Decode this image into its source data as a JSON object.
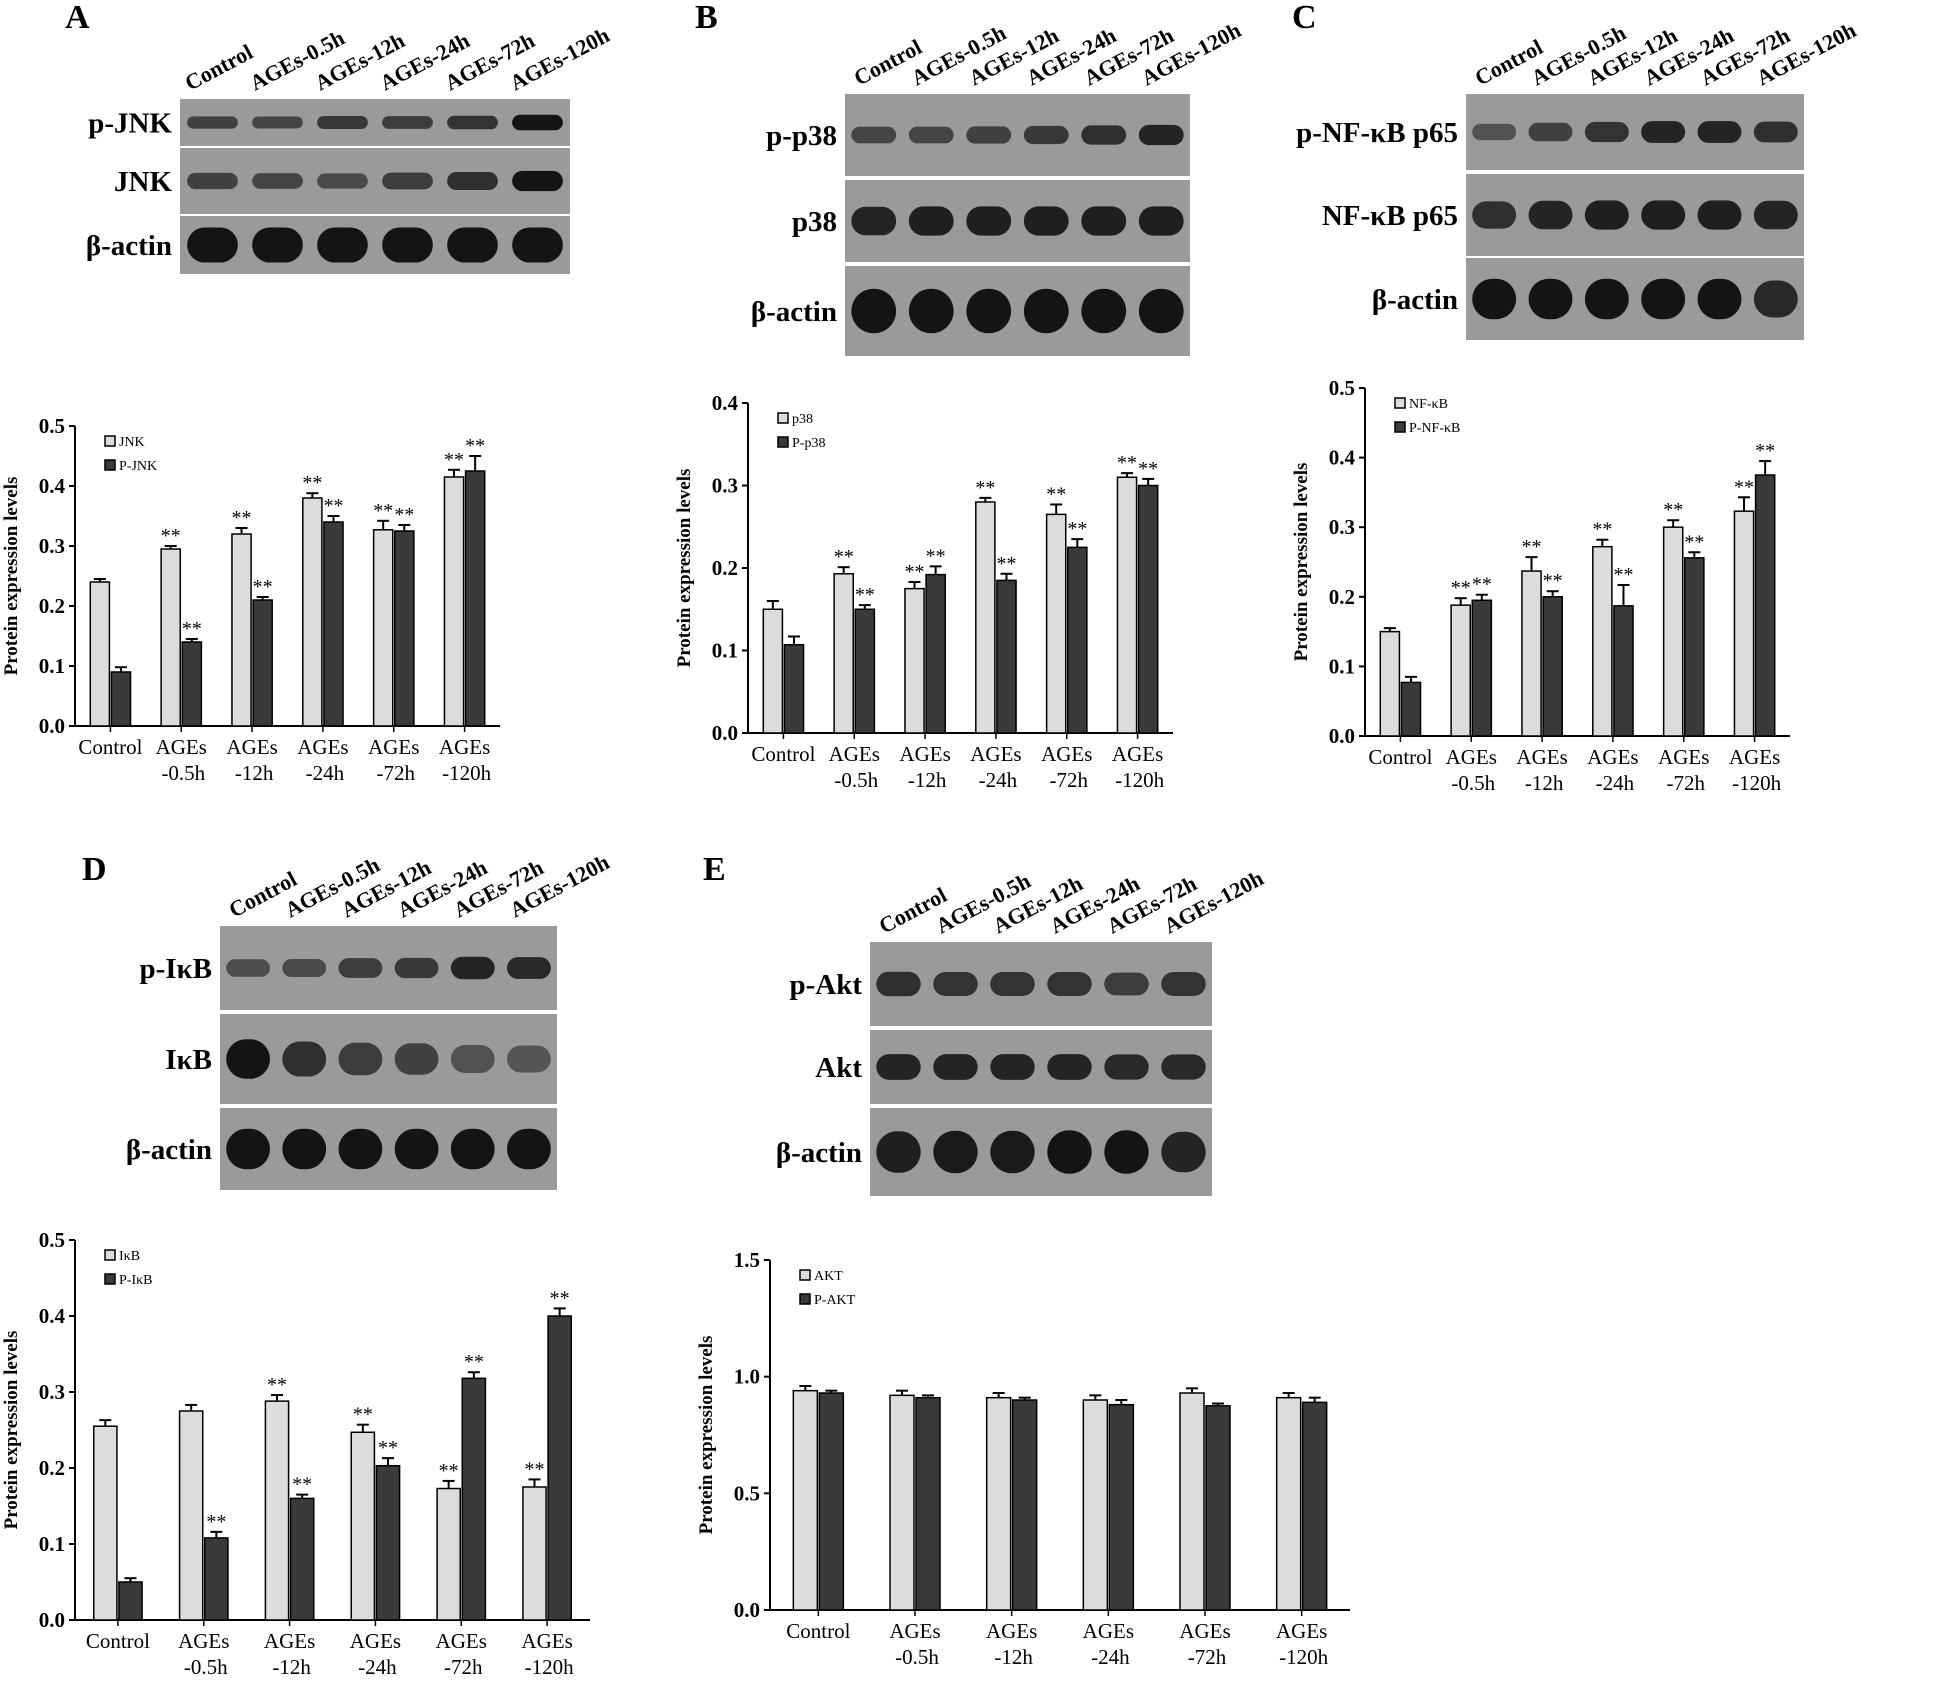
{
  "lane_labels": [
    "Control",
    "AGEs-0.5h",
    "AGEs-12h",
    "AGEs-24h",
    "AGEs-72h",
    "AGEs-120h"
  ],
  "colors": {
    "light_bar": "#dcdcdc",
    "dark_bar": "#3a3a3a",
    "blot_bg": "#9a9a9a",
    "band": "#1c1c1c"
  },
  "panels": [
    {
      "letter": "A",
      "blot_rows": [
        {
          "label": "p-JNK",
          "intensities": [
            0.55,
            0.5,
            0.65,
            0.6,
            0.7,
            1.0
          ]
        },
        {
          "label": "JNK",
          "intensities": [
            0.55,
            0.5,
            0.45,
            0.6,
            0.75,
            1.0
          ]
        },
        {
          "label": "β-actin",
          "intensities": [
            1,
            1,
            1,
            1,
            1,
            1
          ]
        }
      ]
    },
    {
      "letter": "B",
      "blot_rows": [
        {
          "label": "p-p38",
          "intensities": [
            0.5,
            0.5,
            0.55,
            0.65,
            0.75,
            0.85
          ]
        },
        {
          "label": "p38",
          "intensities": [
            0.85,
            0.9,
            0.9,
            0.9,
            0.9,
            0.9
          ]
        },
        {
          "label": "β-actin",
          "intensities": [
            1,
            1,
            1,
            1,
            1,
            1
          ]
        }
      ]
    },
    {
      "letter": "C",
      "blot_rows": [
        {
          "label": "p-NF-κB p65",
          "intensities": [
            0.35,
            0.55,
            0.7,
            0.85,
            0.85,
            0.75
          ]
        },
        {
          "label": "NF-κB p65",
          "intensities": [
            0.75,
            0.85,
            0.9,
            0.9,
            0.9,
            0.85
          ]
        },
        {
          "label": "β-actin",
          "intensities": [
            1,
            1,
            1,
            1,
            1,
            0.8
          ]
        }
      ]
    },
    {
      "letter": "D",
      "blot_rows": [
        {
          "label": "p-IκB",
          "intensities": [
            0.4,
            0.45,
            0.6,
            0.65,
            0.85,
            0.8
          ]
        },
        {
          "label": "IκB",
          "intensities": [
            1,
            0.75,
            0.6,
            0.55,
            0.35,
            0.3
          ]
        },
        {
          "label": "β-actin",
          "intensities": [
            1,
            1,
            1,
            1,
            1,
            1
          ]
        }
      ]
    },
    {
      "letter": "E",
      "blot_rows": [
        {
          "label": "p-Akt",
          "intensities": [
            0.75,
            0.7,
            0.7,
            0.7,
            0.6,
            0.7
          ]
        },
        {
          "label": "Akt",
          "intensities": [
            0.85,
            0.85,
            0.85,
            0.85,
            0.8,
            0.8
          ]
        },
        {
          "label": "β-actin",
          "intensities": [
            0.9,
            0.95,
            0.95,
            1,
            1,
            0.85
          ]
        }
      ]
    }
  ],
  "chart_data": [
    {
      "type": "bar",
      "panel": "A",
      "ylabel": "Protein expression levels",
      "ylim": [
        0,
        0.5
      ],
      "yticks": [
        "0.0",
        "0.1",
        "0.2",
        "0.3",
        "0.4",
        "0.5"
      ],
      "categories": [
        [
          "Control"
        ],
        [
          "AGEs",
          "-0.5h"
        ],
        [
          "AGEs",
          "-12h"
        ],
        [
          "AGEs",
          "-24h"
        ],
        [
          "AGEs",
          "-72h"
        ],
        [
          "AGEs",
          "-120h"
        ]
      ],
      "legend_position": "top-left",
      "series": [
        {
          "name": "JNK",
          "values": [
            0.24,
            0.295,
            0.32,
            0.38,
            0.327,
            0.415
          ],
          "errors": [
            0.005,
            0.005,
            0.01,
            0.008,
            0.015,
            0.012
          ],
          "marks": [
            "",
            "**",
            "**",
            "**",
            "**",
            "**"
          ]
        },
        {
          "name": "P-JNK",
          "values": [
            0.09,
            0.14,
            0.21,
            0.34,
            0.325,
            0.425
          ],
          "errors": [
            0.008,
            0.005,
            0.005,
            0.01,
            0.01,
            0.025
          ],
          "marks": [
            "",
            "**",
            "**",
            "**",
            "**",
            "**"
          ]
        }
      ]
    },
    {
      "type": "bar",
      "panel": "B",
      "ylabel": "Protein expression levels",
      "ylim": [
        0,
        0.4
      ],
      "yticks": [
        "0.0",
        "0.1",
        "0.2",
        "0.3",
        "0.4"
      ],
      "categories": [
        [
          "Control"
        ],
        [
          "AGEs",
          "-0.5h"
        ],
        [
          "AGEs",
          "-12h"
        ],
        [
          "AGEs",
          "-24h"
        ],
        [
          "AGEs",
          "-72h"
        ],
        [
          "AGEs",
          "-120h"
        ]
      ],
      "legend_position": "top-left",
      "series": [
        {
          "name": "p38",
          "values": [
            0.15,
            0.193,
            0.175,
            0.28,
            0.265,
            0.31
          ],
          "errors": [
            0.01,
            0.008,
            0.008,
            0.005,
            0.012,
            0.005
          ],
          "marks": [
            "",
            "**",
            "**",
            "**",
            "**",
            "**"
          ]
        },
        {
          "name": "P-p38",
          "values": [
            0.107,
            0.15,
            0.192,
            0.185,
            0.225,
            0.3
          ],
          "errors": [
            0.01,
            0.005,
            0.01,
            0.008,
            0.01,
            0.008
          ],
          "marks": [
            "",
            "**",
            "**",
            "**",
            "**",
            "**"
          ]
        }
      ]
    },
    {
      "type": "bar",
      "panel": "C",
      "ylabel": "Protein expression levels",
      "ylim": [
        0,
        0.5
      ],
      "yticks": [
        "0.0",
        "0.1",
        "0.2",
        "0.3",
        "0.4",
        "0.5"
      ],
      "categories": [
        [
          "Control"
        ],
        [
          "AGEs",
          "-0.5h"
        ],
        [
          "AGEs",
          "-12h"
        ],
        [
          "AGEs",
          "-24h"
        ],
        [
          "AGEs",
          "-72h"
        ],
        [
          "AGEs",
          "-120h"
        ]
      ],
      "legend_position": "top-left",
      "series": [
        {
          "name": "NF-κB",
          "values": [
            0.15,
            0.188,
            0.237,
            0.272,
            0.3,
            0.323
          ],
          "errors": [
            0.005,
            0.01,
            0.02,
            0.01,
            0.01,
            0.02
          ],
          "marks": [
            "",
            "**",
            "**",
            "**",
            "**",
            "**"
          ]
        },
        {
          "name": "P-NF-κB",
          "values": [
            0.077,
            0.195,
            0.2,
            0.187,
            0.256,
            0.375
          ],
          "errors": [
            0.008,
            0.008,
            0.008,
            0.03,
            0.008,
            0.02
          ],
          "marks": [
            "",
            "**",
            "**",
            "**",
            "**",
            "**"
          ]
        }
      ]
    },
    {
      "type": "bar",
      "panel": "D",
      "ylabel": "Protein expression levels",
      "ylim": [
        0,
        0.5
      ],
      "yticks": [
        "0.0",
        "0.1",
        "0.2",
        "0.3",
        "0.4",
        "0.5"
      ],
      "categories": [
        [
          "Control"
        ],
        [
          "AGEs",
          "-0.5h"
        ],
        [
          "AGEs",
          "-12h"
        ],
        [
          "AGEs",
          "-24h"
        ],
        [
          "AGEs",
          "-72h"
        ],
        [
          "AGEs",
          "-120h"
        ]
      ],
      "legend_position": "top-left",
      "series": [
        {
          "name": "IκB",
          "values": [
            0.255,
            0.275,
            0.288,
            0.247,
            0.173,
            0.175
          ],
          "errors": [
            0.008,
            0.008,
            0.008,
            0.01,
            0.01,
            0.01
          ],
          "marks": [
            "",
            "",
            "**",
            "**",
            "**",
            "**"
          ]
        },
        {
          "name": "P-IκB",
          "values": [
            0.05,
            0.108,
            0.16,
            0.203,
            0.318,
            0.4
          ],
          "errors": [
            0.005,
            0.008,
            0.005,
            0.01,
            0.008,
            0.01
          ],
          "marks": [
            "",
            "**",
            "**",
            "**",
            "**",
            "**"
          ]
        }
      ]
    },
    {
      "type": "bar",
      "panel": "E",
      "ylabel": "Protein expression levels",
      "ylim": [
        0,
        1.5
      ],
      "yticks": [
        "0.0",
        "0.5",
        "1.0",
        "1.5"
      ],
      "categories": [
        [
          "Control"
        ],
        [
          "AGEs",
          "-0.5h"
        ],
        [
          "AGEs",
          "-12h"
        ],
        [
          "AGEs",
          "-24h"
        ],
        [
          "AGEs",
          "-72h"
        ],
        [
          "AGEs",
          "-120h"
        ]
      ],
      "legend_position": "top-left",
      "series": [
        {
          "name": "AKT",
          "values": [
            0.94,
            0.92,
            0.91,
            0.9,
            0.93,
            0.91
          ],
          "errors": [
            0.02,
            0.02,
            0.02,
            0.02,
            0.02,
            0.02
          ],
          "marks": [
            "",
            "",
            "",
            "",
            "",
            ""
          ]
        },
        {
          "name": "P-AKT",
          "values": [
            0.93,
            0.91,
            0.9,
            0.88,
            0.875,
            0.89
          ],
          "errors": [
            0.01,
            0.01,
            0.01,
            0.02,
            0.01,
            0.02
          ],
          "marks": [
            "",
            "",
            "",
            "",
            "",
            ""
          ]
        }
      ]
    }
  ]
}
